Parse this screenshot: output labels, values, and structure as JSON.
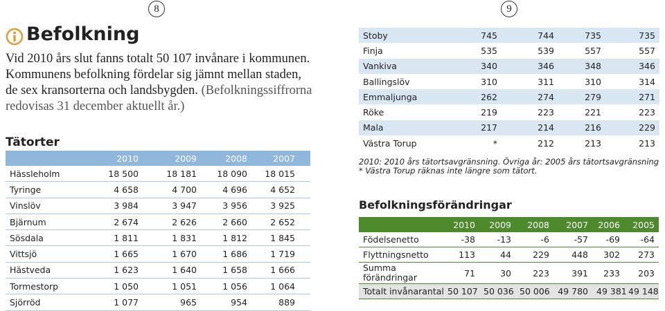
{
  "page_left": {
    "page_number": "8",
    "title": "Befolkning",
    "intro": "Vid 2010 års slut fanns totalt 50 107 invånare i kommunen. Kommunens befolkning fördelar sig jämnt mellan staden, de sex kransorterna och landsbygden.",
    "intro_note": "(Befolkningssiffrorna redovisas 31 december aktuellt år.)",
    "tatorter": {
      "heading": "Tätorter",
      "columns": [
        "2010",
        "2009",
        "2008",
        "2007"
      ],
      "rows": [
        [
          "Hässleholm",
          "18 500",
          "18 181",
          "18 090",
          "18 015"
        ],
        [
          "Tyringe",
          "4 658",
          "4 700",
          "4 696",
          "4 652"
        ],
        [
          "Vinslöv",
          "3 984",
          "3 947",
          "3 956",
          "3 925"
        ],
        [
          "Bjärnum",
          "2 674",
          "2 626",
          "2 660",
          "2 652"
        ],
        [
          "Sösdala",
          "1 811",
          "1 831",
          "1 812",
          "1 845"
        ],
        [
          "Vittsjö",
          "1 665",
          "1 670",
          "1 686",
          "1 719"
        ],
        [
          "Hästveda",
          "1 623",
          "1 640",
          "1 658",
          "1 666"
        ],
        [
          "Tormestorp",
          "1 050",
          "1 051",
          "1 056",
          "1 064"
        ],
        [
          "Sjörröd",
          "1 077",
          "965",
          "954",
          "889"
        ]
      ]
    }
  },
  "page_right": {
    "page_number": "9",
    "tatorter_cont": {
      "rows": [
        [
          "Stoby",
          "745",
          "744",
          "735",
          "735"
        ],
        [
          "Finja",
          "535",
          "539",
          "557",
          "557"
        ],
        [
          "Vankiva",
          "340",
          "346",
          "348",
          "346"
        ],
        [
          "Ballingslöv",
          "310",
          "311",
          "310",
          "314"
        ],
        [
          "Emmaljunga",
          "262",
          "274",
          "279",
          "271"
        ],
        [
          "Röke",
          "219",
          "223",
          "221",
          "223"
        ],
        [
          "Mala",
          "217",
          "214",
          "216",
          "229"
        ],
        [
          "Västra Torup",
          "*",
          "212",
          "213",
          "213"
        ]
      ]
    },
    "notes": [
      "2010: 2010 års tätortsavgränsning. Övriga år: 2005 års tätortsavgränsning",
      "* Västra Torup räknas inte längre som tätort."
    ],
    "forandringar": {
      "heading": "Befolkningsförändringar",
      "columns": [
        "2010",
        "2009",
        "2008",
        "2007",
        "2006",
        "2005"
      ],
      "rows": [
        [
          "Födelsenetto",
          "-38",
          "-13",
          "-6",
          "-57",
          "-69",
          "-64"
        ],
        [
          "Flyttningsnetto",
          "113",
          "44",
          "229",
          "448",
          "302",
          "273"
        ],
        [
          "Summa förändringar",
          "71",
          "30",
          "223",
          "391",
          "233",
          "203"
        ],
        [
          "Totalt invånarantal",
          "50 107",
          "50 036",
          "50 006",
          "49 780",
          "49 381",
          "49 148"
        ]
      ]
    }
  }
}
